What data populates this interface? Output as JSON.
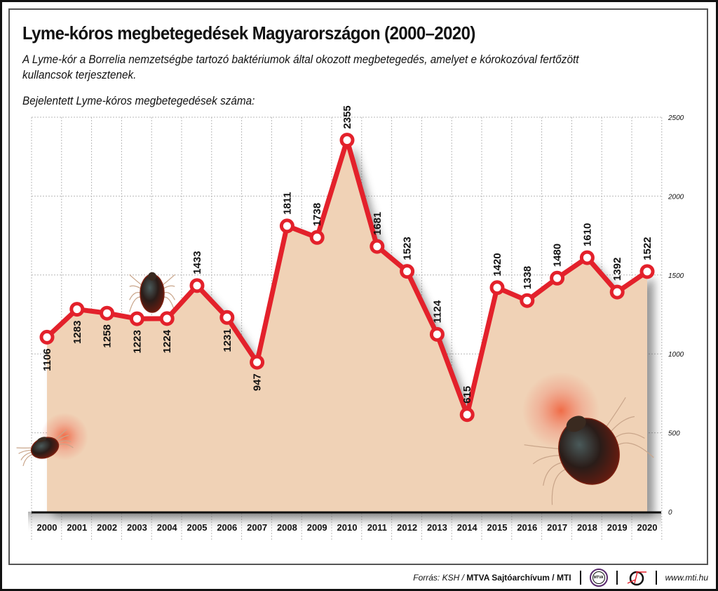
{
  "header": {
    "title": "Lyme-kóros megbetegedések Magyarországon (2000–2020)",
    "subtitle": "A Lyme-kór a Borrelia nemzetségbe tartozó baktériumok által okozott megbetegedés, amelyet e kórokozóval fertőzött kullancsok terjesztenek.",
    "chart_label": "Bejelentett Lyme-kóros megbetegedések száma:"
  },
  "footer": {
    "source_prefix": "Forrás: KSH / ",
    "source_bold": "MTVA Sajtóarchívum / MTI",
    "logo_mtva_text": "MTVA",
    "url": "www.mti.hu"
  },
  "colors": {
    "line": "#e3212b",
    "fill": "#f0d2b6",
    "grid": "#b8b8b8",
    "text": "#111111"
  },
  "chart_data": {
    "type": "area",
    "title": "Lyme-kóros megbetegedések Magyarországon (2000–2020)",
    "subtitle": "Bejelentett Lyme-kóros megbetegedések száma:",
    "xlabel": "",
    "ylabel": "",
    "categories": [
      "2000",
      "2001",
      "2002",
      "2003",
      "2004",
      "2005",
      "2006",
      "2007",
      "2008",
      "2009",
      "2010",
      "2011",
      "2012",
      "2013",
      "2014",
      "2015",
      "2016",
      "2017",
      "2018",
      "2019",
      "2020"
    ],
    "series": [
      {
        "name": "Bejelentett Lyme-kóros megbetegedések",
        "values": [
          1106,
          1283,
          1258,
          1223,
          1224,
          1433,
          1231,
          947,
          1811,
          1738,
          2355,
          1681,
          1523,
          1124,
          615,
          1420,
          1338,
          1480,
          1610,
          1392,
          1522
        ]
      }
    ],
    "data_labels": [
      "1106",
      "1283",
      "1258",
      "1223",
      "1224",
      "1433",
      "1231",
      "947",
      "1811",
      "1738",
      "2355",
      "1681",
      "1523",
      "1124",
      "615",
      "1420",
      "1338",
      "1480",
      "1610",
      "1392",
      "1522"
    ],
    "label_position": [
      "below",
      "below",
      "below",
      "below",
      "below",
      "above",
      "below",
      "below",
      "above",
      "above",
      "above",
      "above",
      "above",
      "above",
      "above",
      "above",
      "above",
      "above",
      "above",
      "above",
      "above"
    ],
    "ylim": [
      0,
      2500
    ],
    "yticks": [
      0,
      500,
      1000,
      1500,
      2000,
      2500
    ],
    "ytick_labels": [
      "0",
      "500",
      "1000",
      "1500",
      "2000",
      "2500"
    ],
    "y_axis_side": "right",
    "grid": true,
    "legend": "none"
  }
}
